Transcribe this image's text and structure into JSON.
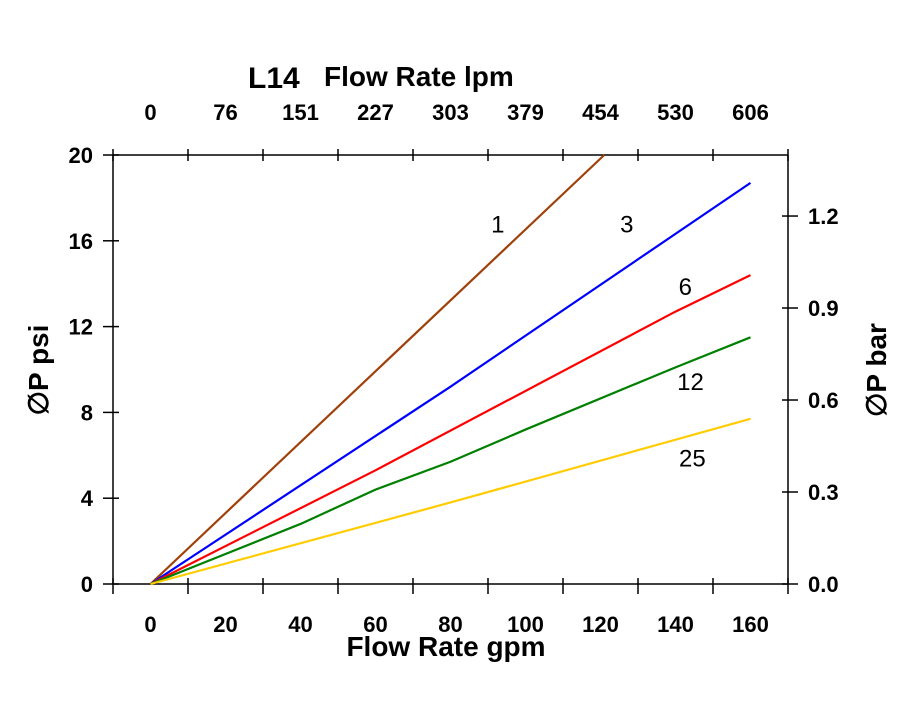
{
  "chart_data": {
    "type": "line",
    "title": "L14",
    "top_xlabel": "Flow Rate lpm",
    "xlabel": "Flow Rate gpm",
    "ylabel": "∅P psi",
    "y2label": "∅P bar",
    "xlim": [
      -10,
      170
    ],
    "ylim": [
      0,
      20
    ],
    "y2lim": [
      0,
      1.399
    ],
    "grid": false,
    "x_ticks": [
      0,
      20,
      40,
      60,
      80,
      100,
      120,
      140,
      160
    ],
    "x_tick_labels": [
      "0",
      "20",
      "40",
      "60",
      "80",
      "100",
      "120",
      "140",
      "160"
    ],
    "top_tick_labels": [
      "0",
      "76",
      "151",
      "227",
      "303",
      "379",
      "454",
      "530",
      "606"
    ],
    "y_ticks": [
      0,
      4,
      8,
      12,
      16,
      20
    ],
    "y_tick_labels": [
      "0",
      "4",
      "8",
      "12",
      "16",
      "20"
    ],
    "y2_ticks": [
      0,
      0.3,
      0.6,
      0.9,
      1.2
    ],
    "y2_tick_labels": [
      "0.0",
      "0.3",
      "0.6",
      "0.9",
      "1.2"
    ],
    "series": [
      {
        "name": "1",
        "color": "#a0400a",
        "x": [
          0,
          121
        ],
        "y": [
          0,
          20
        ],
        "label_at": [
          92.6,
          16.8
        ]
      },
      {
        "name": "3",
        "color": "#0000ff",
        "x": [
          0,
          80,
          160
        ],
        "y": [
          0,
          9.2,
          18.7
        ],
        "label_at": [
          127,
          16.8
        ]
      },
      {
        "name": "6",
        "color": "#ff0000",
        "x": [
          0,
          60,
          140,
          160
        ],
        "y": [
          0,
          5.3,
          12.7,
          14.4
        ],
        "label_at": [
          142.6,
          13.9
        ]
      },
      {
        "name": "12",
        "color": "#008000",
        "x": [
          0,
          40,
          60,
          80,
          100,
          140,
          160
        ],
        "y": [
          0,
          2.8,
          4.4,
          5.7,
          7.2,
          10.1,
          11.5
        ],
        "label_at": [
          144,
          9.46
        ]
      },
      {
        "name": "25",
        "color": "#ffcc00",
        "x": [
          0,
          80,
          160
        ],
        "y": [
          0,
          3.8,
          7.7
        ],
        "label_at": [
          144.5,
          5.9
        ]
      }
    ]
  }
}
